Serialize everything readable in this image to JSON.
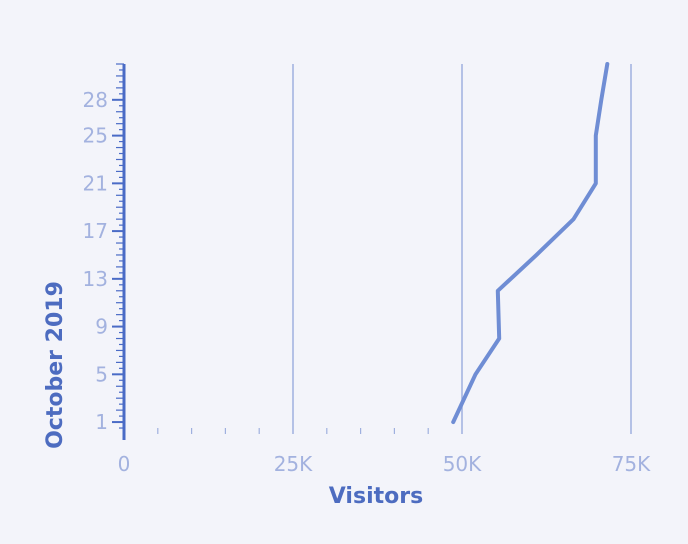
{
  "chart_data": {
    "type": "line",
    "orientation": "horizontal",
    "title": "",
    "xlabel": "Visitors",
    "ylabel": "October 2019",
    "xlim": [
      0,
      75000
    ],
    "ylim": [
      0,
      31
    ],
    "x_ticks": [
      {
        "value": 0,
        "label": "0"
      },
      {
        "value": 25000,
        "label": "25K"
      },
      {
        "value": 50000,
        "label": "50K"
      },
      {
        "value": 75000,
        "label": "75K"
      }
    ],
    "y_ticks": [
      {
        "value": 1,
        "label": "1"
      },
      {
        "value": 5,
        "label": "5"
      },
      {
        "value": 9,
        "label": "9"
      },
      {
        "value": 13,
        "label": "13"
      },
      {
        "value": 17,
        "label": "17"
      },
      {
        "value": 21,
        "label": "21"
      },
      {
        "value": 25,
        "label": "25"
      },
      {
        "value": 28,
        "label": "28"
      }
    ],
    "grid": "vertical",
    "colors": {
      "line": "#6f8dd4",
      "axis": "#4a6bc6",
      "grid": "#9fb0df",
      "label": "#a3b2df",
      "title": "#4d6cc0"
    },
    "series": [
      {
        "x": [
          48700,
          52000,
          55500,
          55300,
          61000,
          66500,
          69800,
          69800,
          70600,
          71500
        ],
        "y": [
          1,
          5,
          8,
          12,
          15,
          18,
          21,
          25,
          28,
          31
        ]
      }
    ]
  }
}
